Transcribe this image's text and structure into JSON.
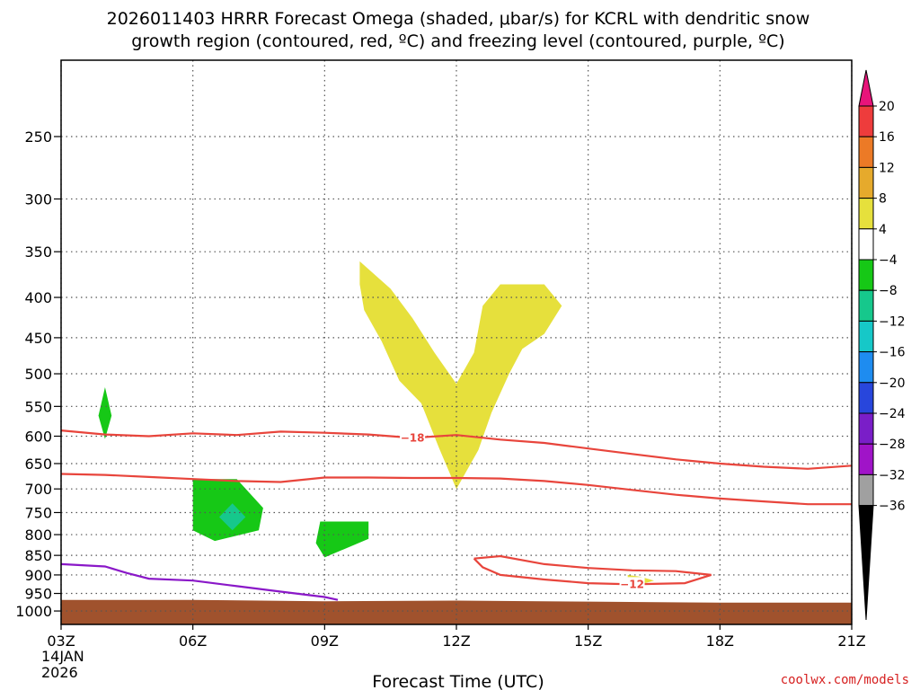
{
  "chart_data": {
    "type": "heatmap",
    "title_line1": "2026011403 HRRR Forecast Omega (shaded, μbar/s) for KCRL with dendritic snow",
    "title_line2": "growth region (contoured, red, ºC) and freezing level (contoured, purple, ºC)",
    "xlabel": "Forecast Time (UTC)",
    "ylabel": "",
    "x_ticks": [
      {
        "hour": 0,
        "label": "03Z"
      },
      {
        "hour": 3,
        "label": "06Z"
      },
      {
        "hour": 6,
        "label": "09Z"
      },
      {
        "hour": 9,
        "label": "12Z"
      },
      {
        "hour": 12,
        "label": "15Z"
      },
      {
        "hour": 15,
        "label": "18Z"
      },
      {
        "hour": 18,
        "label": "21Z"
      }
    ],
    "date_label_line1": "14JAN",
    "date_label_line2": "2026",
    "y_ticks": [
      250,
      300,
      350,
      400,
      450,
      500,
      550,
      600,
      650,
      700,
      750,
      800,
      850,
      900,
      950,
      1000
    ],
    "xlim_hours": [
      0,
      18
    ],
    "ylim_hpa": [
      200,
      1040
    ],
    "y_scale": "log",
    "grid": true,
    "colorbar": {
      "ticks": [
        "20",
        "16",
        "12",
        "8",
        "4",
        "−4",
        "−8",
        "−12",
        "−16",
        "−20",
        "−24",
        "−28",
        "−32",
        "−36"
      ],
      "colors": [
        "#e8147a",
        "#ee3c3c",
        "#ec7a26",
        "#e6aa2c",
        "#e6e03c",
        "#ffffff",
        "#16c816",
        "#16c88c",
        "#16c8c8",
        "#1e8cf0",
        "#2846dc",
        "#7a1ec8",
        "#a014c8",
        "#a0a0a0",
        "#000000"
      ]
    },
    "shaded": [
      {
        "name": "upward-yellow",
        "color": "#e6e03c",
        "points": [
          [
            6.8,
            360
          ],
          [
            7.5,
            390
          ],
          [
            8.0,
            425
          ],
          [
            8.5,
            470
          ],
          [
            9.0,
            515
          ],
          [
            9.4,
            470
          ],
          [
            9.6,
            410
          ],
          [
            10.0,
            385
          ],
          [
            11.0,
            385
          ],
          [
            11.4,
            410
          ],
          [
            11.0,
            445
          ],
          [
            10.5,
            465
          ],
          [
            10.2,
            500
          ],
          [
            9.8,
            560
          ],
          [
            9.5,
            625
          ],
          [
            9.0,
            700
          ],
          [
            8.6,
            620
          ],
          [
            8.2,
            545
          ],
          [
            7.7,
            510
          ],
          [
            7.3,
            455
          ],
          [
            6.9,
            415
          ],
          [
            6.8,
            385
          ]
        ]
      },
      {
        "name": "upward-yellow-small",
        "color": "#e6e03c",
        "points": [
          [
            12.9,
            900
          ],
          [
            13.2,
            905
          ],
          [
            13.5,
            915
          ],
          [
            13.2,
            925
          ],
          [
            12.9,
            915
          ]
        ]
      },
      {
        "name": "downward-green-a",
        "color": "#16c816",
        "points": [
          [
            1.0,
            520
          ],
          [
            1.15,
            565
          ],
          [
            1.0,
            605
          ],
          [
            0.85,
            565
          ]
        ]
      },
      {
        "name": "downward-green-b",
        "color": "#16c816",
        "points": [
          [
            3.0,
            680
          ],
          [
            4.0,
            680
          ],
          [
            4.6,
            740
          ],
          [
            4.5,
            790
          ],
          [
            3.5,
            815
          ],
          [
            3.0,
            790
          ]
        ]
      },
      {
        "name": "downward-teal",
        "color": "#16c88c",
        "points": [
          [
            3.9,
            730
          ],
          [
            4.2,
            760
          ],
          [
            3.9,
            790
          ],
          [
            3.6,
            760
          ]
        ]
      },
      {
        "name": "downward-green-c",
        "color": "#16c816",
        "points": [
          [
            5.9,
            770
          ],
          [
            7.0,
            770
          ],
          [
            7.0,
            810
          ],
          [
            6.0,
            855
          ],
          [
            5.8,
            820
          ]
        ]
      }
    ],
    "contours_red": [
      {
        "label": "−18",
        "label_at": [
          8.0,
          603
        ],
        "points": [
          [
            0,
            590
          ],
          [
            1,
            597
          ],
          [
            2,
            600
          ],
          [
            3,
            595
          ],
          [
            4,
            598
          ],
          [
            5,
            592
          ],
          [
            6,
            594
          ],
          [
            7,
            597
          ],
          [
            8,
            603
          ],
          [
            9,
            598
          ],
          [
            10,
            606
          ],
          [
            11,
            612
          ],
          [
            12,
            622
          ],
          [
            13,
            632
          ],
          [
            14,
            642
          ],
          [
            15,
            650
          ],
          [
            16,
            656
          ],
          [
            17,
            660
          ],
          [
            18,
            654
          ]
        ]
      },
      {
        "label": "",
        "label_at": null,
        "points": [
          [
            0,
            670
          ],
          [
            1,
            672
          ],
          [
            2,
            676
          ],
          [
            3,
            680
          ],
          [
            4,
            684
          ],
          [
            5,
            686
          ],
          [
            6,
            677
          ],
          [
            7,
            677
          ],
          [
            8,
            678
          ],
          [
            9,
            678
          ],
          [
            10,
            679
          ],
          [
            11,
            684
          ],
          [
            12,
            692
          ],
          [
            13,
            702
          ],
          [
            14,
            712
          ],
          [
            15,
            720
          ],
          [
            16,
            726
          ],
          [
            17,
            732
          ],
          [
            18,
            732
          ]
        ]
      },
      {
        "label": "−12",
        "label_at": [
          13.0,
          925
        ],
        "points": [
          [
            9.4,
            858
          ],
          [
            10.0,
            852
          ],
          [
            11.0,
            872
          ],
          [
            12.0,
            882
          ],
          [
            13.0,
            888
          ],
          [
            14.0,
            890
          ],
          [
            14.8,
            900
          ],
          [
            14.2,
            922
          ],
          [
            13.0,
            925
          ],
          [
            12.0,
            922
          ],
          [
            11.0,
            912
          ],
          [
            10.0,
            900
          ],
          [
            9.6,
            880
          ],
          [
            9.4,
            858
          ]
        ]
      }
    ],
    "contours_purple": [
      {
        "label": "",
        "points": [
          [
            0,
            872
          ],
          [
            1,
            878
          ],
          [
            1.5,
            895
          ],
          [
            2,
            910
          ],
          [
            3,
            915
          ],
          [
            4,
            930
          ],
          [
            5,
            945
          ],
          [
            6,
            960
          ],
          [
            6.3,
            968
          ]
        ]
      }
    ],
    "ground": {
      "color": "#a0522d",
      "top_hpa": [
        968,
        968,
        972,
        970,
        973,
        976,
        976
      ],
      "bottom_hpa": 1040
    },
    "credit": "coolwx.com/models"
  }
}
